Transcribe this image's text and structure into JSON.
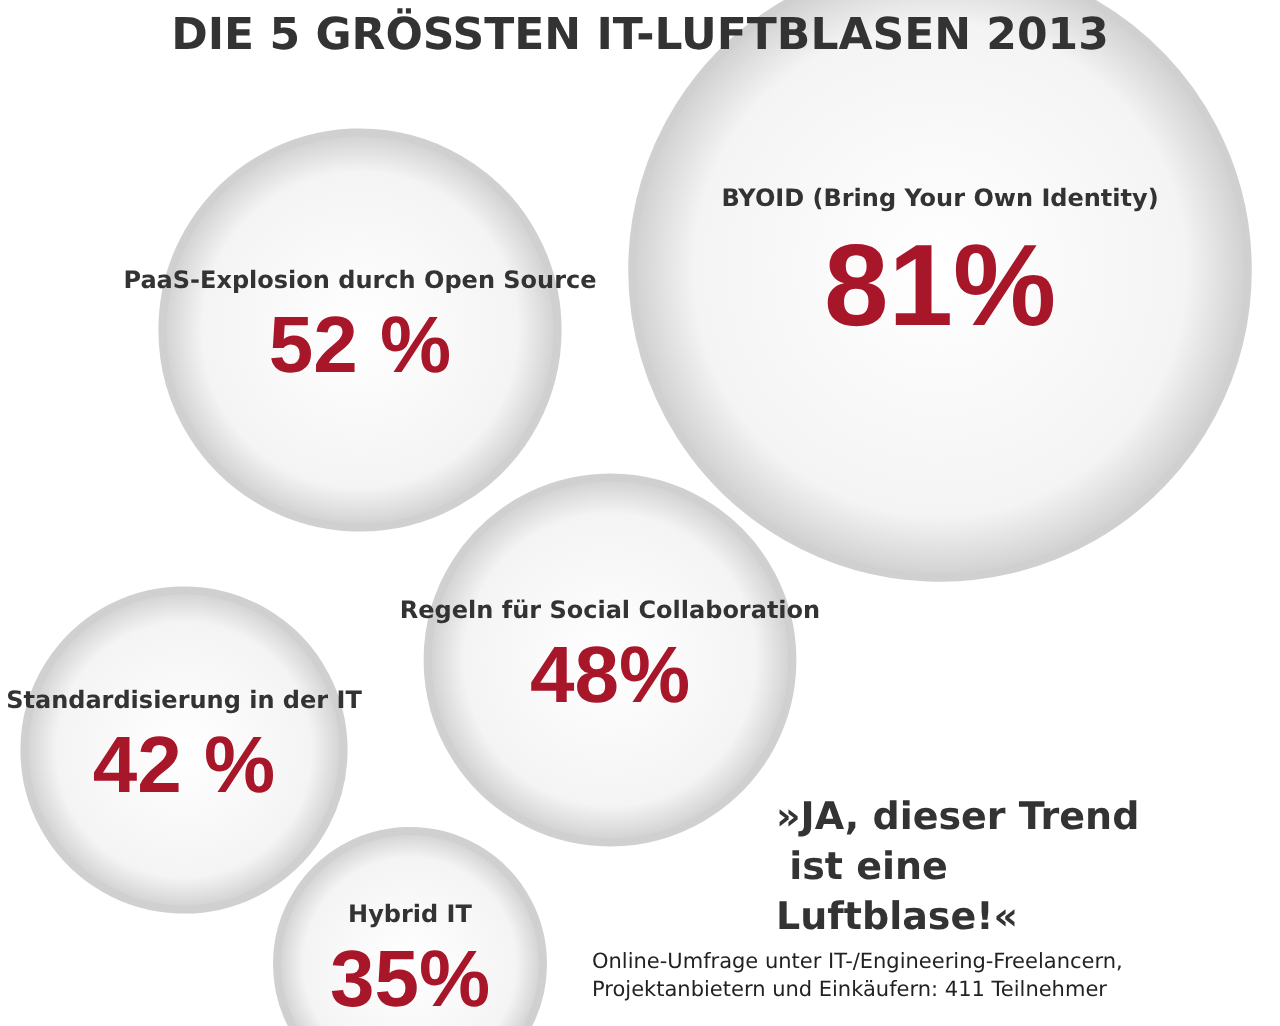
{
  "chart_data": {
    "type": "other",
    "title": "DIE 5 GRÖSSTEN IT-LUFTBLASEN 2013",
    "categories": [
      "PaaS-Explosion durch Open Source",
      "BYOID (Bring Your Own Identity)",
      "Regeln für Social Collaboration",
      "Standardisierung in der IT",
      "Hybrid IT"
    ],
    "values": [
      52,
      81,
      48,
      42,
      35
    ],
    "value_labels": [
      "52 %",
      "81%",
      "48%",
      "42 %",
      "35%"
    ],
    "color": "#d0d0d0",
    "annotations": [
      "»JA, dieser Trend ist eine Luftblase!«",
      "Online-Umfrage unter IT-/Engineering-Freelancern, Projektanbietern und Einkäufern: 411 Teilnehmer"
    ]
  }
}
